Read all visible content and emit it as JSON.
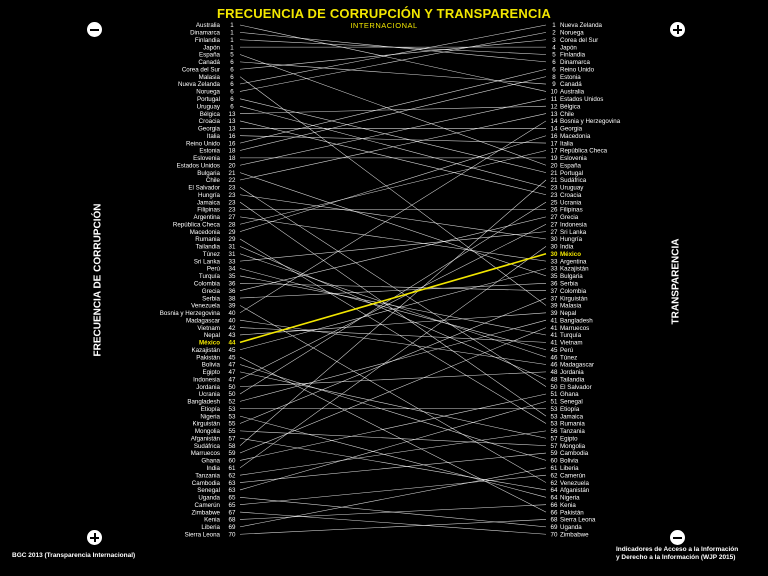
{
  "title": "FRECUENCIA DE CORRUPCIÓN Y TRANSPARENCIA",
  "subtitle": "INTERNACIONAL",
  "left_axis_title": "FRECUENCIA DE CORRUPCIÓN",
  "right_axis_title": "TRANSPARENCIA",
  "left_source": "BGC 2013 (Transparencia Internacional)",
  "right_source_line1": "Indicadores de Acceso a la Información",
  "right_source_line2": "y Derecho a la Información (WJP 2015)",
  "colors": {
    "background": "#000000",
    "line": "#ffffff",
    "highlight": "#f2e600"
  },
  "chart_data": {
    "type": "slope",
    "highlight": "México",
    "left": {
      "names": [
        "Australia",
        "Dinamarca",
        "Finlandia",
        "Japón",
        "España",
        "Canadá",
        "Corea del Sur",
        "Malasia",
        "Nueva Zelanda",
        "Noruega",
        "Portugal",
        "Uruguay",
        "Bélgica",
        "Croacia",
        "Georgia",
        "Italia",
        "Reino Unido",
        "Estonia",
        "Eslovenia",
        "Estados Unidos",
        "Bulgaria",
        "Chile",
        "El Salvador",
        "Hungría",
        "Jamaica",
        "Filipinas",
        "Argentina",
        "República Checa",
        "Macedonia",
        "Rumania",
        "Tailandia",
        "Túnez",
        "Sri Lanka",
        "Perú",
        "Turquía",
        "Colombia",
        "Grecia",
        "Serbia",
        "Venezuela",
        "Bosnia y Herzegovina",
        "Madagascar",
        "Vietnam",
        "Nepal",
        "México",
        "Kazajistán",
        "Pakistán",
        "Bolivia",
        "Egipto",
        "Indonesia",
        "Jordania",
        "Ucrania",
        "Bangladesh",
        "Etiopía",
        "Nigeria",
        "Kirguistán",
        "Mongolia",
        "Afganistán",
        "Sudáfrica",
        "Marruecos",
        "Ghana",
        "India",
        "Tanzania",
        "Cambodia",
        "Senegal",
        "Uganda",
        "Camerún",
        "Zimbabwe",
        "Kenia",
        "Liberia",
        "Sierra Leona"
      ],
      "ranks": [
        "1",
        "1",
        "1",
        "1",
        "5",
        "6",
        "6",
        "6",
        "6",
        "6",
        "6",
        "6",
        "13",
        "13",
        "13",
        "16",
        "16",
        "18",
        "18",
        "20",
        "21",
        "22",
        "23",
        "23",
        "23",
        "23",
        "27",
        "28",
        "29",
        "29",
        "31",
        "31",
        "33",
        "34",
        "35",
        "36",
        "36",
        "38",
        "39",
        "40",
        "40",
        "42",
        "43",
        "44",
        "45",
        "45",
        "47",
        "47",
        "47",
        "50",
        "50",
        "52",
        "53",
        "53",
        "55",
        "55",
        "57",
        "58",
        "59",
        "60",
        "61",
        "62",
        "63",
        "63",
        "65",
        "65",
        "67",
        "68",
        "69",
        "70"
      ]
    },
    "right": {
      "names": [
        "Nueva Zelanda",
        "Noruega",
        "Corea del Sur",
        "Japón",
        "Finlandia",
        "Dinamarca",
        "Reino Unido",
        "Estonia",
        "Canadá",
        "Australia",
        "Estados Unidos",
        "Bélgica",
        "Chile",
        "Bosnia y Herzegovina",
        "Georgia",
        "Macedonia",
        "Italia",
        "República Checa",
        "Eslovenia",
        "España",
        "Portugal",
        "Sudáfrica",
        "Uruguay",
        "Croacia",
        "Ucrania",
        "Filipinas",
        "Grecia",
        "Indonesia",
        "Sri Lanka",
        "Hungría",
        "India",
        "México",
        "Argentina",
        "Kazajistán",
        "Bulgaria",
        "Serbia",
        "Colombia",
        "Kirguistán",
        "Malasia",
        "Nepal",
        "Bangladesh",
        "Marruecos",
        "Turquía",
        "Vietnam",
        "Perú",
        "Túnez",
        "Madagascar",
        "Jordania",
        "Tailandia",
        "El Salvador",
        "Ghana",
        "Senegal",
        "Etiopía",
        "Jamaica",
        "Rumania",
        "Tanzania",
        "Egipto",
        "Mongolia",
        "Cambodia",
        "Bolivia",
        "Liberia",
        "Camerún",
        "Venezuela",
        "Afganistán",
        "Nigeria",
        "Kenia",
        "Pakistán",
        "Sierra Leona",
        "Uganda",
        "Zimbabwe"
      ],
      "ranks": [
        "1",
        "2",
        "3",
        "4",
        "5",
        "6",
        "6",
        "8",
        "9",
        "10",
        "11",
        "12",
        "13",
        "14",
        "14",
        "16",
        "17",
        "17",
        "19",
        "20",
        "21",
        "21",
        "23",
        "23",
        "25",
        "26",
        "27",
        "27",
        "27",
        "30",
        "30",
        "30",
        "33",
        "33",
        "35",
        "36",
        "37",
        "37",
        "39",
        "39",
        "41",
        "41",
        "41",
        "41",
        "45",
        "46",
        "46",
        "48",
        "48",
        "50",
        "51",
        "51",
        "53",
        "53",
        "53",
        "56",
        "57",
        "57",
        "59",
        "60",
        "61",
        "62",
        "62",
        "64",
        "64",
        "66",
        "66",
        "68",
        "69",
        "70"
      ]
    }
  }
}
